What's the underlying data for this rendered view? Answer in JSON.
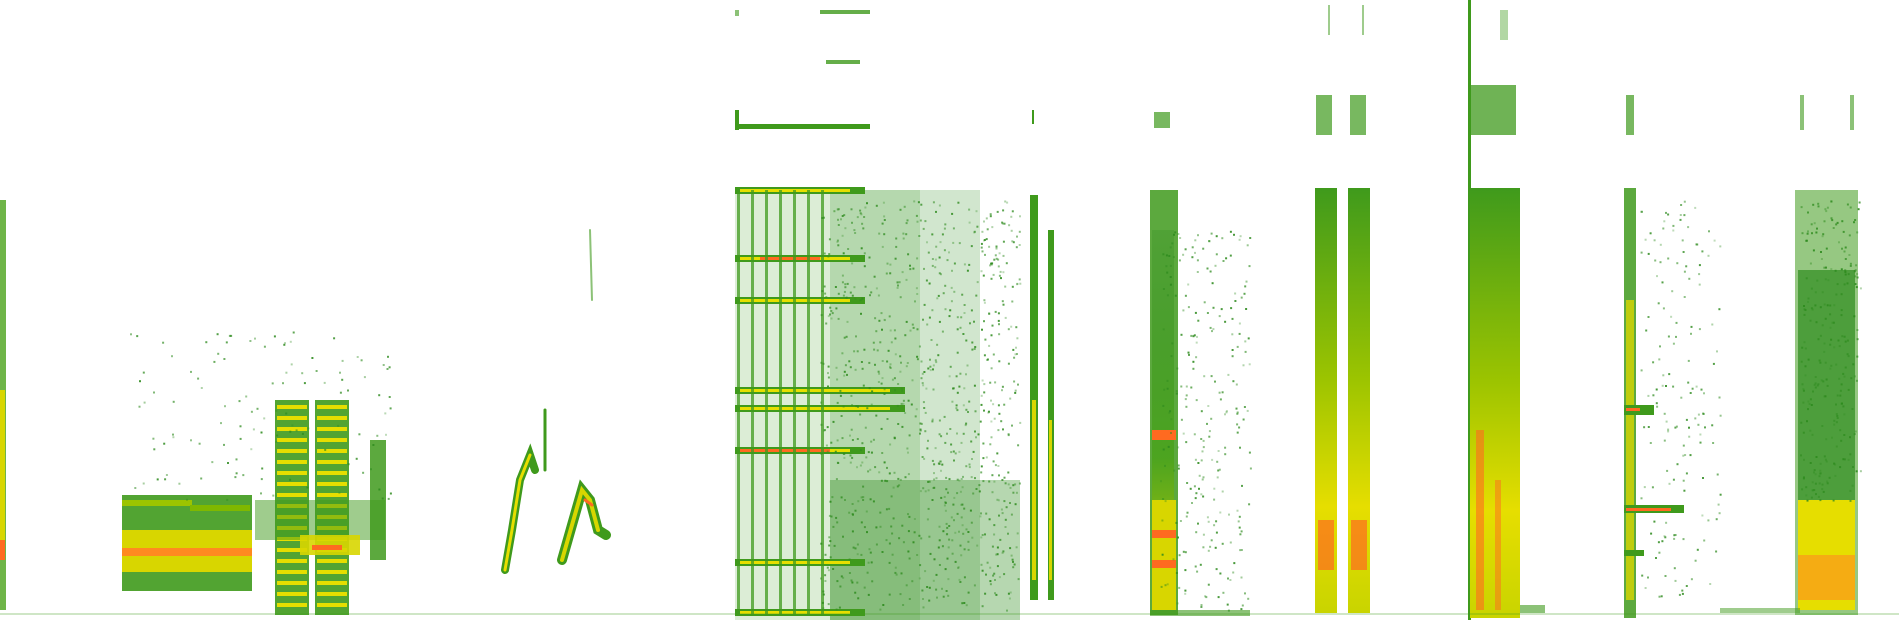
{
  "image": {
    "kind": "spectrogram",
    "background": "#ffffff",
    "palette": {
      "low": "#2e8b1e",
      "mid": "#7fb800",
      "high": "#e8e000",
      "peak": "#ff4b1f"
    }
  }
}
